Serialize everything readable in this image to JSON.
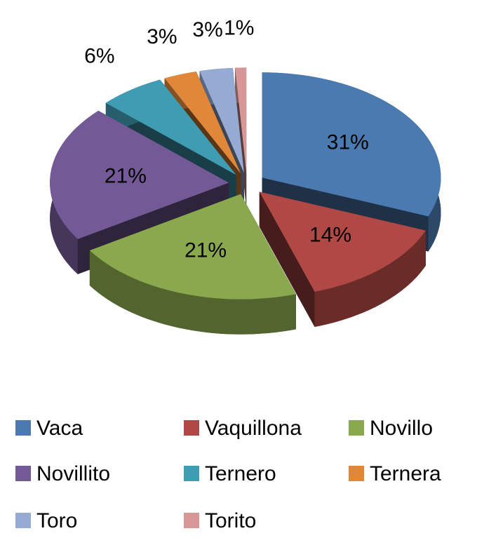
{
  "chart_data": {
    "type": "pie",
    "categories": [
      "Vaca",
      "Vaquillona",
      "Novillo",
      "Novillito",
      "Ternero",
      "Ternera",
      "Toro",
      "Torito"
    ],
    "values": [
      31,
      14,
      21,
      21,
      6,
      3,
      3,
      1
    ],
    "value_labels": [
      "31%",
      "14%",
      "21%",
      "21%",
      "6%",
      "3%",
      "3%",
      "1%"
    ],
    "colors": [
      "#4a7ab0",
      "#b04845",
      "#8aa84e",
      "#735a96",
      "#3f9cb3",
      "#e0873a",
      "#95abd4",
      "#d69796"
    ],
    "legend": "bottom"
  }
}
